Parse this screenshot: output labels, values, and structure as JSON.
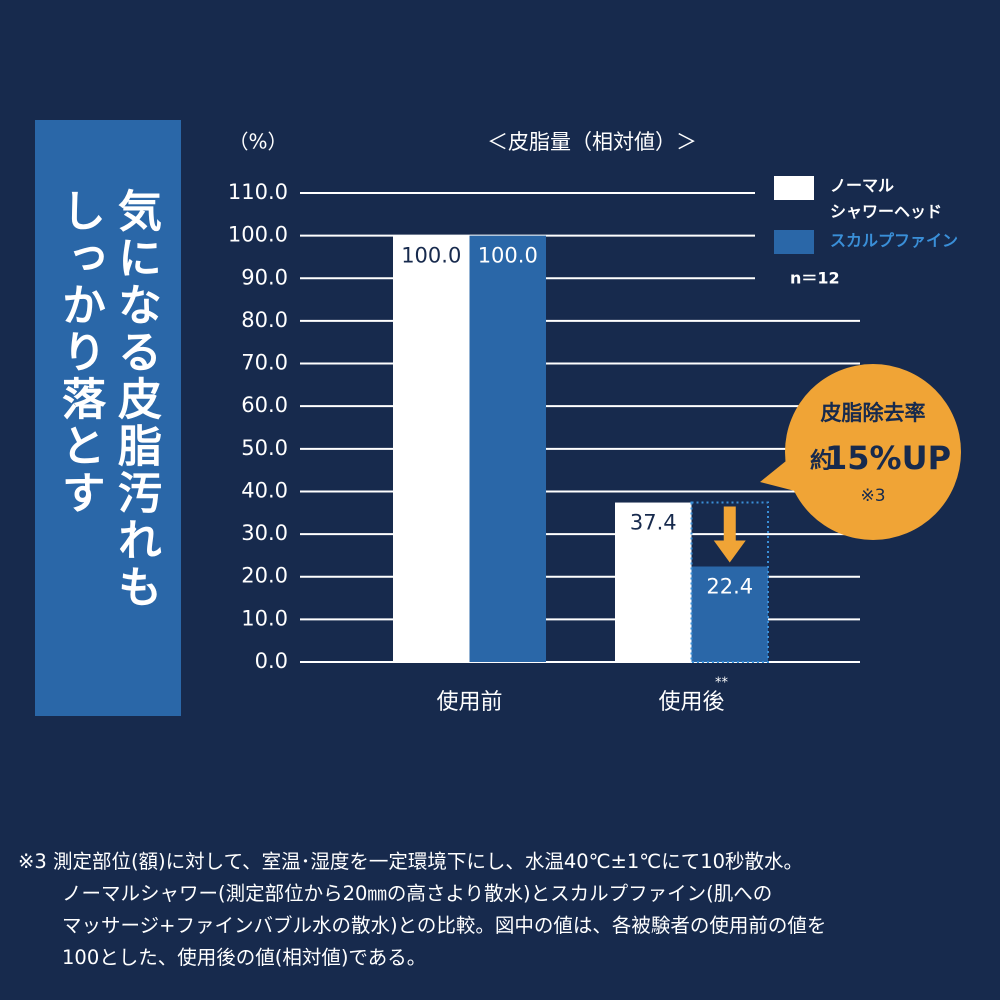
{
  "banner": {
    "lines": [
      "気になる皮脂汚れも",
      "しっかり落とす"
    ]
  },
  "chart_data": {
    "type": "bar",
    "title": "＜皮脂量（相対値）＞",
    "y_label": "（%）",
    "categories": [
      "使用前",
      "使用後"
    ],
    "significance_mark": "**",
    "series": [
      {
        "name": "ノーマル\nシャワーヘッド",
        "color": "#ffffff",
        "values": [
          100,
          37.4
        ],
        "value_labels": [
          "100.0",
          "37.4"
        ]
      },
      {
        "name": "スカルプファイン",
        "color": "#2a67a8",
        "values": [
          100,
          22.4
        ],
        "value_labels": [
          "100.0",
          "22.4"
        ]
      }
    ],
    "ylim": [
      0,
      110
    ],
    "yticks": [
      {
        "value": 0,
        "label": "0.0"
      },
      {
        "value": 10,
        "label": "10.0"
      },
      {
        "value": 20,
        "label": "20.0"
      },
      {
        "value": 30,
        "label": "30.0"
      },
      {
        "value": 40,
        "label": "40.0"
      },
      {
        "value": 50,
        "label": "50.0"
      },
      {
        "value": 60,
        "label": "60.0"
      },
      {
        "value": 70,
        "label": "70.0"
      },
      {
        "value": 80,
        "label": "80.0"
      },
      {
        "value": 90,
        "label": "90.0"
      },
      {
        "value": 100,
        "label": "100.0"
      },
      {
        "value": 110,
        "label": "110.0"
      }
    ],
    "grid": true,
    "sample_size": "n＝12"
  },
  "callout": {
    "line1": "皮脂除去率",
    "prefix": "約",
    "highlight": "15%UP",
    "note": "※3"
  },
  "footnote": {
    "lines": [
      "※3 測定部位(額)に対して、室温･湿度を一定環境下にし、水温40℃±1℃にて10秒散水。",
      "ノーマルシャワー(測定部位から20㎜の高さより散水)とスカルプファイン(肌への",
      "マッサージ+ファインバブル水の散水)との比較。図中の値は、各被験者の使用前の値を",
      "100とした、使用後の値(相対値)である。"
    ]
  }
}
